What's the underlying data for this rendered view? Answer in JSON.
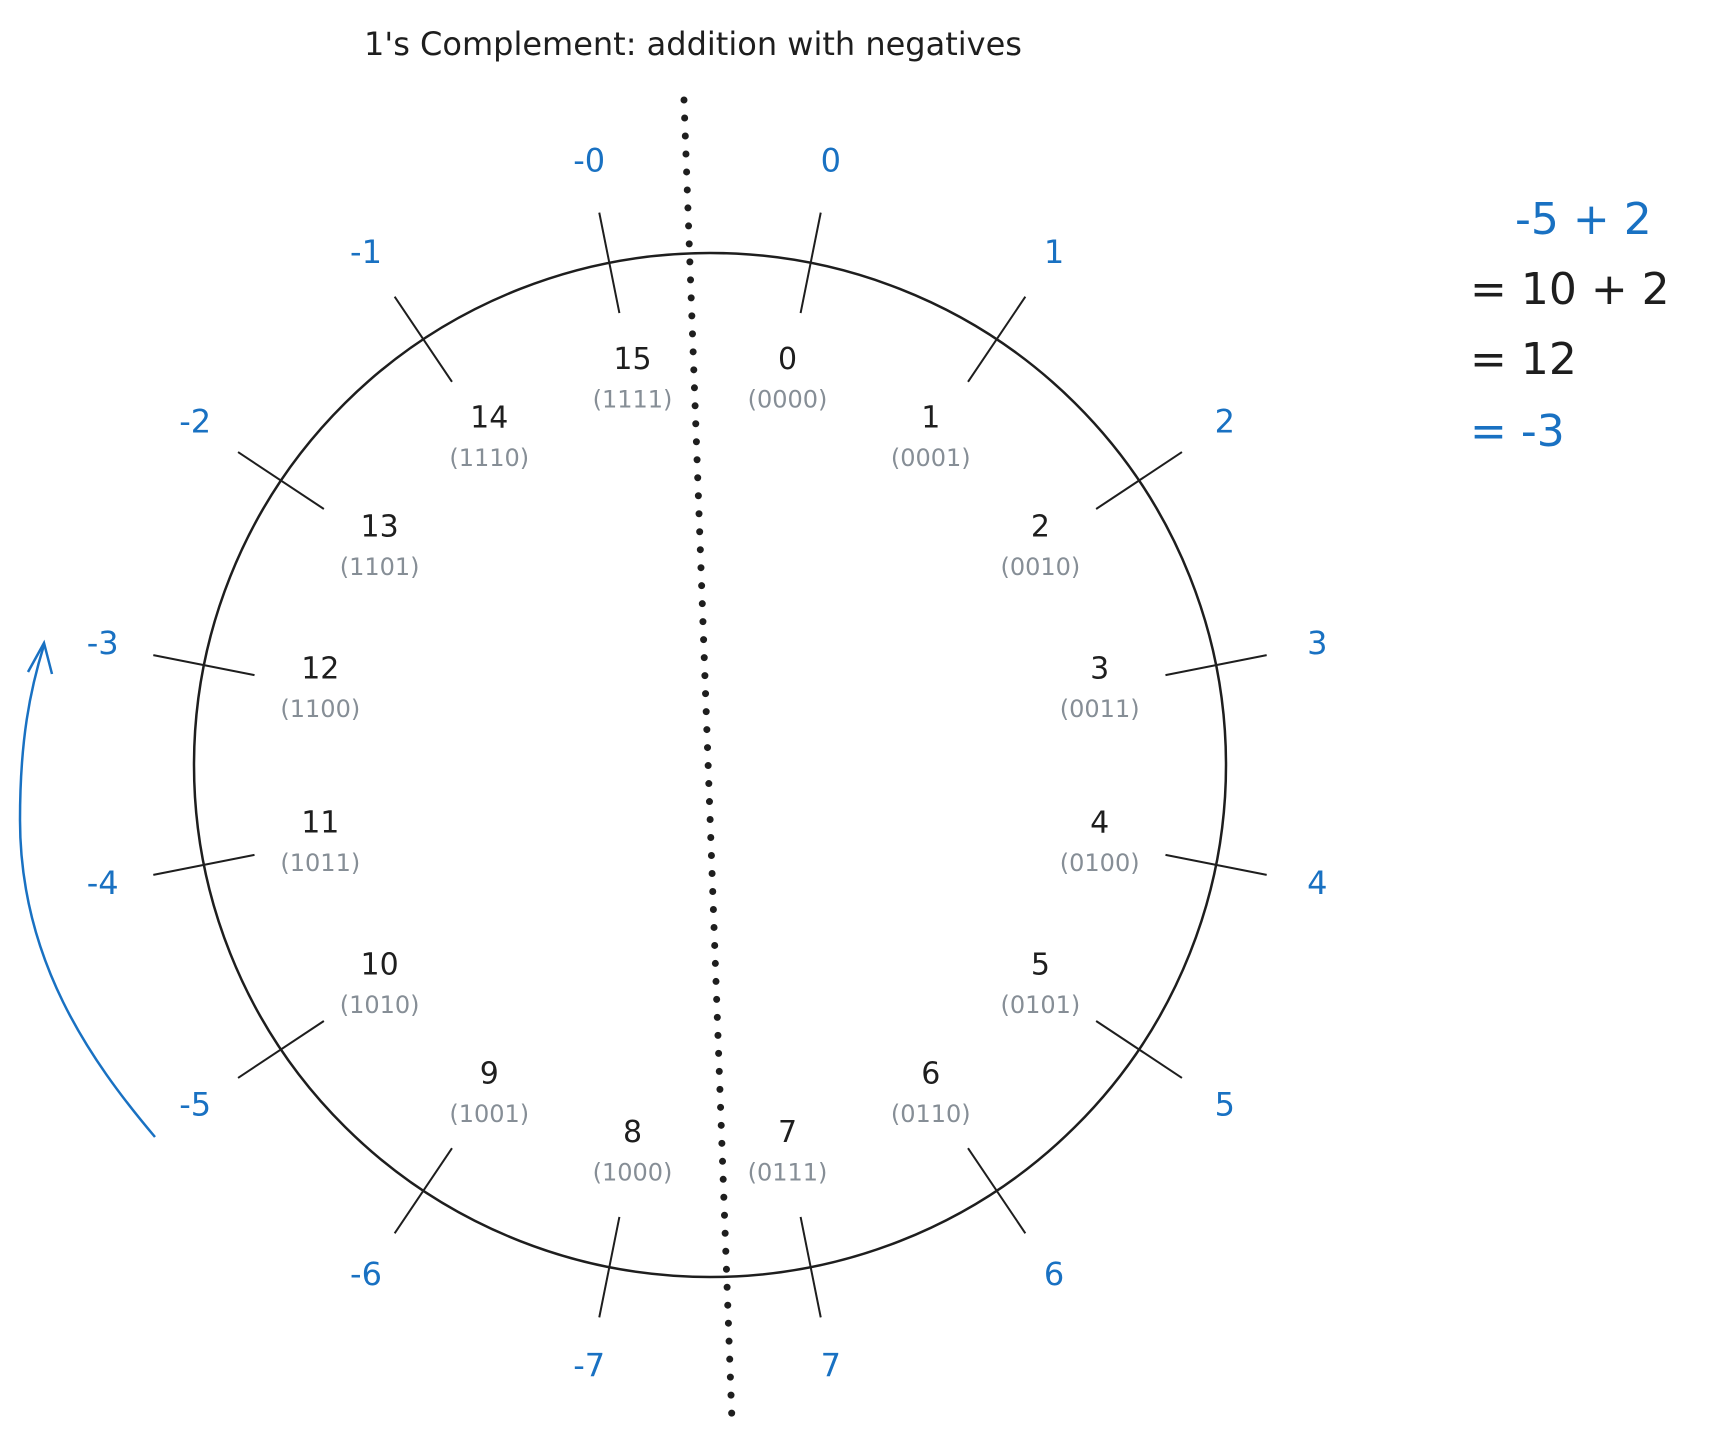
{
  "title": "1's Complement: addition with negatives",
  "nodes": [
    {
      "label": "0",
      "binary": "(0000)",
      "signed": "0"
    },
    {
      "label": "1",
      "binary": "(0001)",
      "signed": "1"
    },
    {
      "label": "2",
      "binary": "(0010)",
      "signed": "2"
    },
    {
      "label": "3",
      "binary": "(0011)",
      "signed": "3"
    },
    {
      "label": "4",
      "binary": "(0100)",
      "signed": "4"
    },
    {
      "label": "5",
      "binary": "(0101)",
      "signed": "5"
    },
    {
      "label": "6",
      "binary": "(0110)",
      "signed": "6"
    },
    {
      "label": "7",
      "binary": "(0111)",
      "signed": "7"
    },
    {
      "label": "8",
      "binary": "(1000)",
      "signed": "-7"
    },
    {
      "label": "9",
      "binary": "(1001)",
      "signed": "-6"
    },
    {
      "label": "10",
      "binary": "(1010)",
      "signed": "-5"
    },
    {
      "label": "11",
      "binary": "(1011)",
      "signed": "-4"
    },
    {
      "label": "12",
      "binary": "(1100)",
      "signed": "-3"
    },
    {
      "label": "13",
      "binary": "(1101)",
      "signed": "-2"
    },
    {
      "label": "14",
      "binary": "(1110)",
      "signed": "-1"
    },
    {
      "label": "15",
      "binary": "(1111)",
      "signed": "-0"
    }
  ],
  "equation": [
    "-5 + 2",
    "= 10 + 2",
    "= 12",
    "= -3"
  ]
}
